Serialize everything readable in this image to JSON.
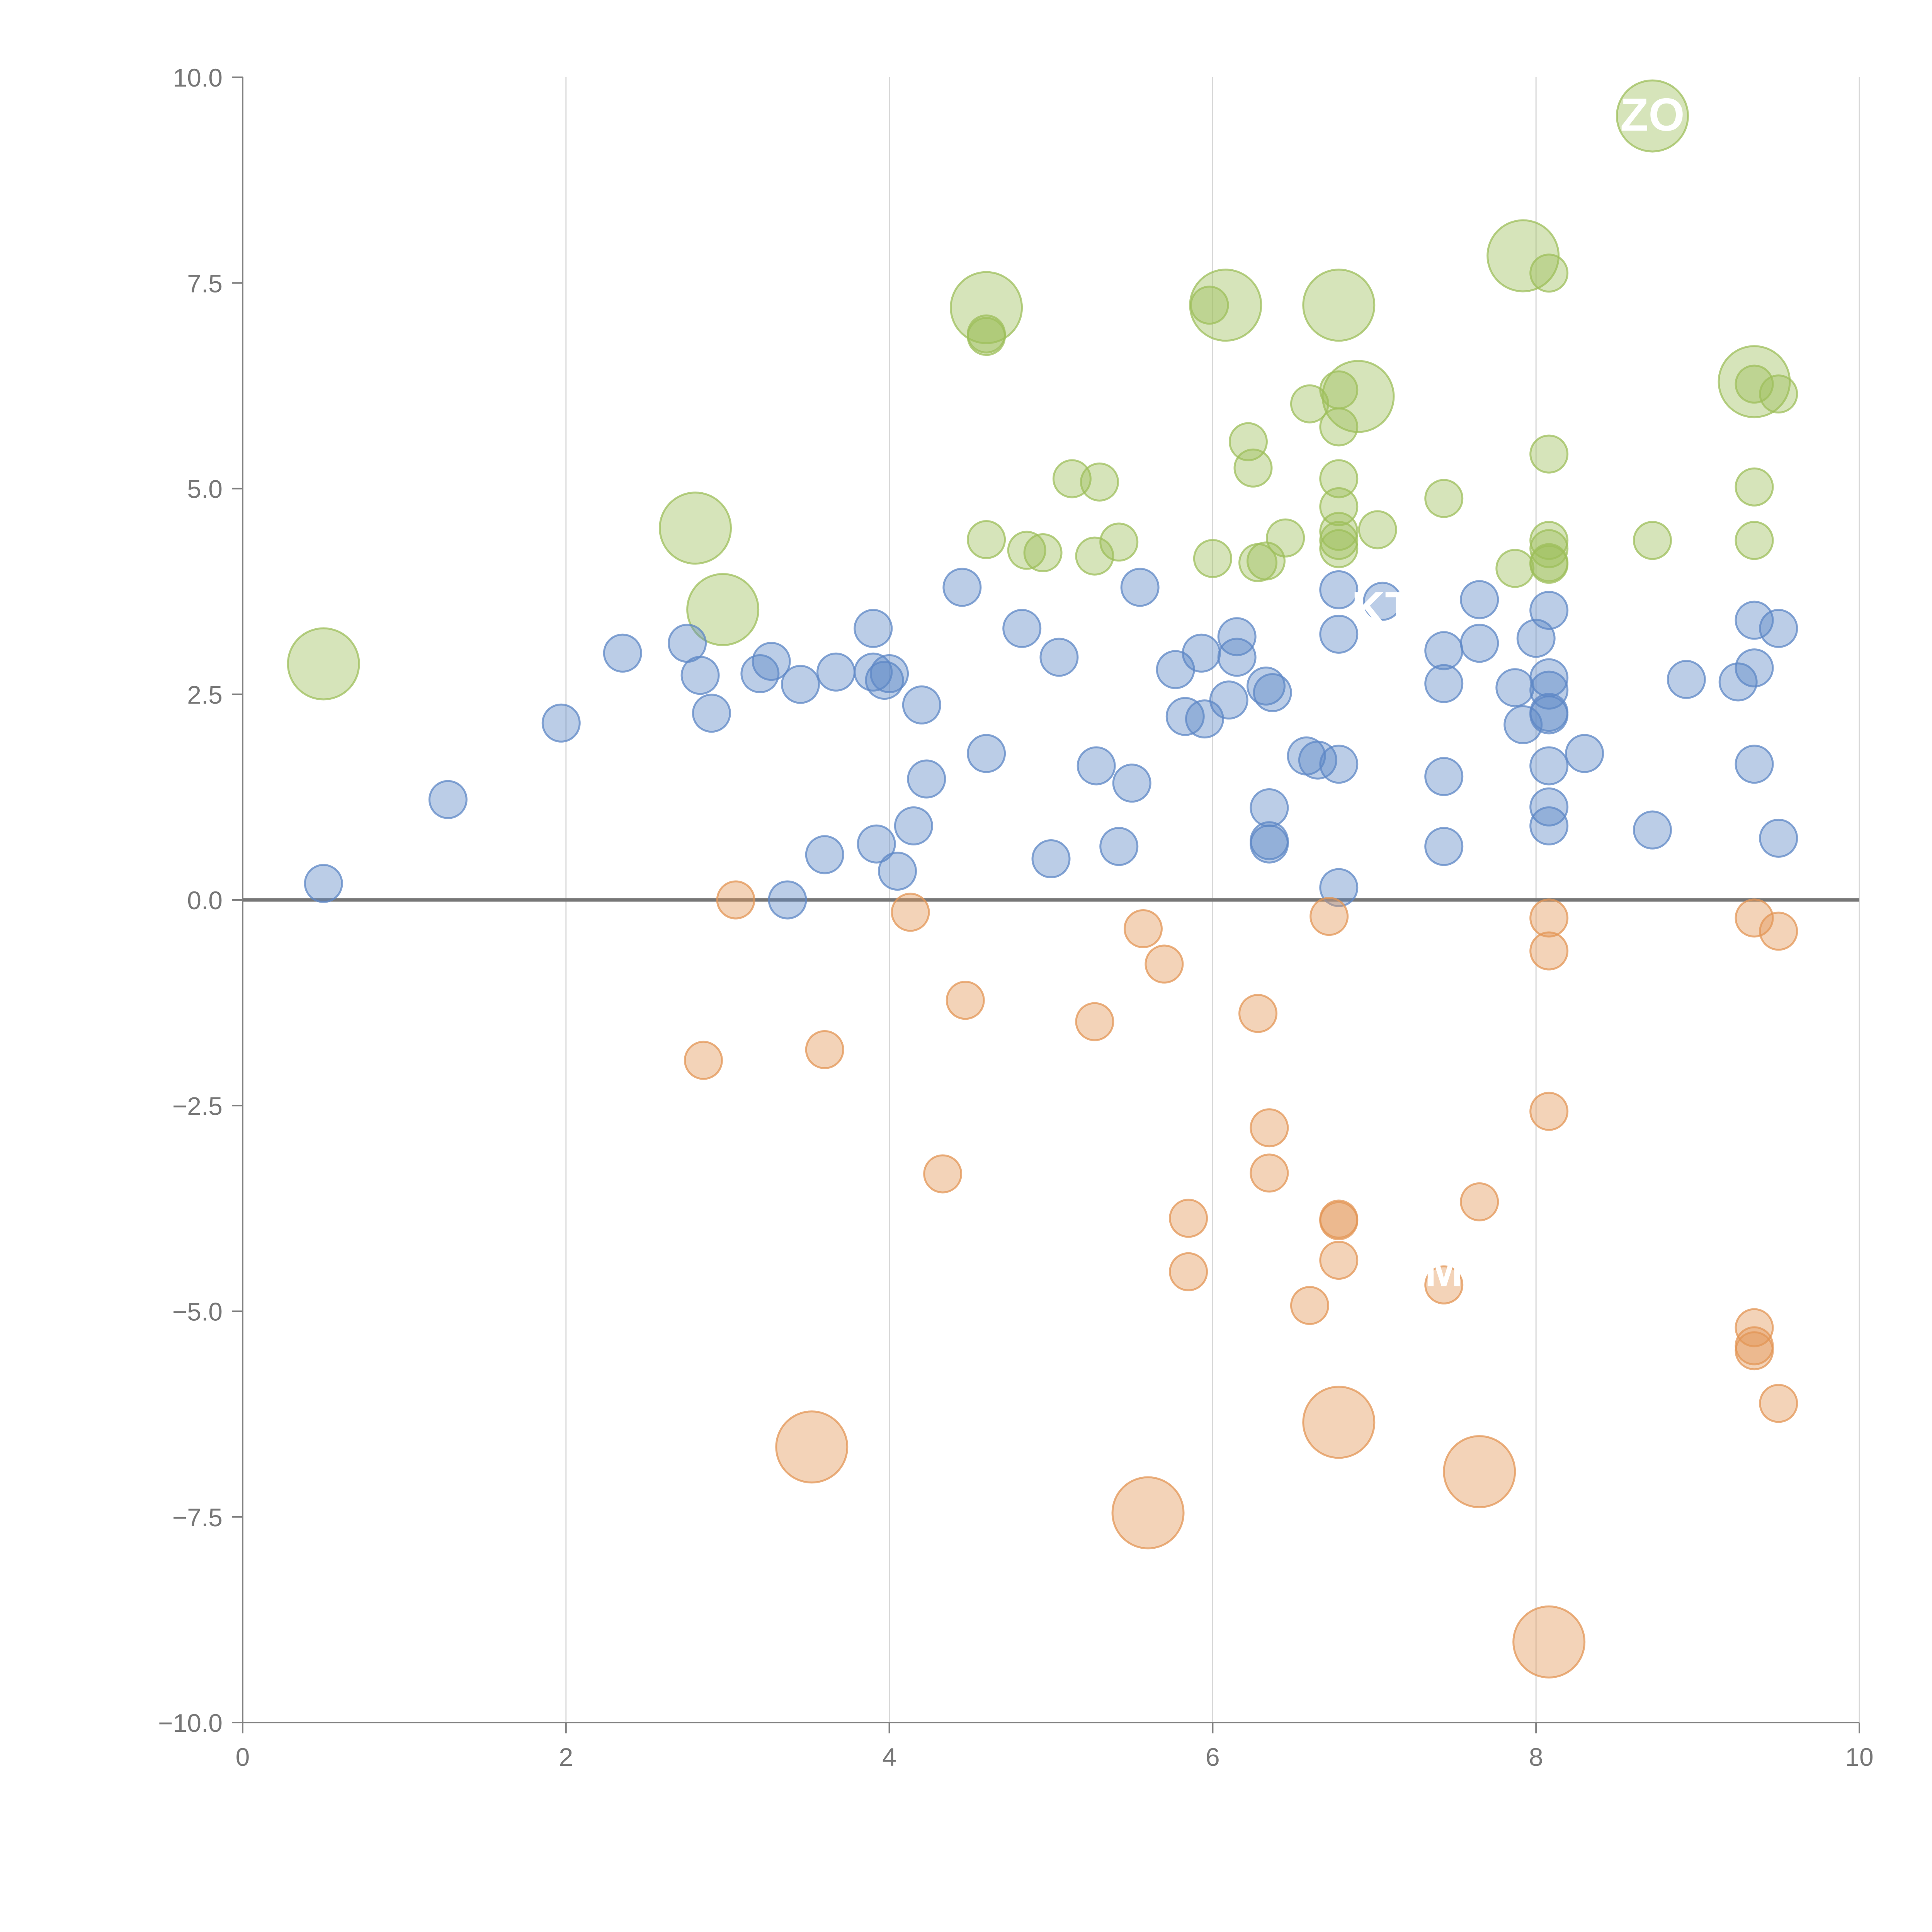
{
  "chart_data": {
    "type": "scatter",
    "title": "",
    "xlabel": "",
    "ylabel": "",
    "xlim": [
      0,
      10
    ],
    "ylim": [
      -10,
      10
    ],
    "grid": "vertical lines at x ticks",
    "x_ticks": [
      0,
      2,
      4,
      6,
      8,
      10
    ],
    "x_tick_labels": [
      "0",
      "2",
      "4",
      "6",
      "8",
      "10"
    ],
    "y_ticks": [
      10,
      7.5,
      5,
      2.5,
      0,
      -2.5,
      -5,
      -7.5,
      -10
    ],
    "y_tick_labels": [
      "10.0",
      "7.5",
      "5.0",
      "2.5",
      "0.0",
      "−2.5",
      "−5.0",
      "−7.5",
      "−10.0"
    ],
    "colors": {
      "green": "#9ebf5b",
      "blue": "#5e87c6",
      "orange": "#e39655",
      "axis": "#808080",
      "grid": "#d8d8d8",
      "zero_line": "#777777"
    },
    "series": [
      {
        "name": "green",
        "color": "#9ebf5b",
        "points": [
          [
            0.5,
            2.87,
            2
          ],
          [
            2.8,
            4.52,
            2
          ],
          [
            2.97,
            3.53,
            2
          ],
          [
            4.6,
            7.2,
            2
          ],
          [
            4.6,
            6.85,
            1
          ],
          [
            4.6,
            6.88,
            1
          ],
          [
            5.98,
            7.23,
            1
          ],
          [
            6.08,
            7.23,
            2
          ],
          [
            6.78,
            7.23,
            2
          ],
          [
            6.9,
            6.12,
            2
          ],
          [
            6.78,
            6.2,
            1
          ],
          [
            6.78,
            5.75,
            1
          ],
          [
            6.6,
            6.03,
            1
          ],
          [
            6.22,
            5.57,
            1
          ],
          [
            6.25,
            5.25,
            1
          ],
          [
            5.13,
            5.12,
            1
          ],
          [
            5.3,
            5.08,
            1
          ],
          [
            6.78,
            5.12,
            1
          ],
          [
            6.78,
            4.78,
            1
          ],
          [
            6.78,
            4.48,
            1
          ],
          [
            6.78,
            4.37,
            1
          ],
          [
            6.78,
            4.27,
            1
          ],
          [
            7.02,
            4.5,
            1
          ],
          [
            7.43,
            4.88,
            1
          ],
          [
            7.92,
            7.83,
            2
          ],
          [
            8.08,
            7.62,
            1
          ],
          [
            8.72,
            9.53,
            2
          ],
          [
            9.35,
            6.3,
            2
          ],
          [
            9.35,
            6.27,
            1
          ],
          [
            9.5,
            6.15,
            1
          ],
          [
            8.08,
            5.42,
            1
          ],
          [
            9.35,
            5.02,
            1
          ],
          [
            9.35,
            4.37,
            1
          ],
          [
            8.72,
            4.37,
            1
          ],
          [
            8.08,
            4.37,
            1
          ],
          [
            8.08,
            4.27,
            1
          ],
          [
            8.08,
            4.08,
            1
          ],
          [
            8.08,
            4.1,
            1
          ],
          [
            7.87,
            4.03,
            1
          ],
          [
            6.45,
            4.4,
            1
          ],
          [
            6.33,
            4.12,
            1
          ],
          [
            6.28,
            4.1,
            1
          ],
          [
            6.0,
            4.15,
            1
          ],
          [
            5.42,
            4.35,
            1
          ],
          [
            5.27,
            4.18,
            1
          ],
          [
            4.85,
            4.25,
            1
          ],
          [
            4.95,
            4.22,
            1
          ],
          [
            4.6,
            4.38,
            1
          ]
        ]
      },
      {
        "name": "blue",
        "color": "#5e87c6",
        "points": [
          [
            0.5,
            0.2,
            1
          ],
          [
            1.27,
            1.22,
            1
          ],
          [
            1.97,
            2.15,
            1
          ],
          [
            2.35,
            3.0,
            1
          ],
          [
            2.75,
            3.12,
            1
          ],
          [
            2.83,
            2.73,
            1
          ],
          [
            2.9,
            2.27,
            1
          ],
          [
            3.2,
            2.75,
            1
          ],
          [
            3.27,
            2.9,
            1
          ],
          [
            3.45,
            2.62,
            1
          ],
          [
            3.67,
            2.77,
            1
          ],
          [
            3.37,
            0.0,
            1
          ],
          [
            3.6,
            0.55,
            1
          ],
          [
            3.9,
            3.3,
            1
          ],
          [
            3.9,
            2.77,
            1
          ],
          [
            3.97,
            2.67,
            1
          ],
          [
            4.0,
            2.75,
            1
          ],
          [
            3.92,
            0.68,
            1
          ],
          [
            4.05,
            0.35,
            1
          ],
          [
            4.15,
            0.9,
            1
          ],
          [
            4.2,
            2.37,
            1
          ],
          [
            4.23,
            1.47,
            1
          ],
          [
            4.45,
            3.8,
            1
          ],
          [
            4.6,
            1.78,
            1
          ],
          [
            4.82,
            3.3,
            1
          ],
          [
            5.05,
            2.95,
            1
          ],
          [
            5.0,
            0.5,
            1
          ],
          [
            5.28,
            1.63,
            1
          ],
          [
            5.42,
            0.65,
            1
          ],
          [
            5.5,
            1.42,
            1
          ],
          [
            5.55,
            3.8,
            1
          ],
          [
            5.77,
            2.8,
            1
          ],
          [
            5.83,
            2.23,
            1
          ],
          [
            5.95,
            2.2,
            1
          ],
          [
            5.93,
            3.0,
            1
          ],
          [
            6.1,
            2.43,
            1
          ],
          [
            6.15,
            3.2,
            1
          ],
          [
            6.15,
            2.95,
            1
          ],
          [
            6.33,
            2.6,
            1
          ],
          [
            6.37,
            2.52,
            1
          ],
          [
            6.35,
            1.12,
            1
          ],
          [
            6.35,
            0.72,
            1
          ],
          [
            6.35,
            0.68,
            1
          ],
          [
            6.58,
            1.75,
            1
          ],
          [
            6.65,
            1.7,
            1
          ],
          [
            6.78,
            1.65,
            1
          ],
          [
            6.78,
            0.15,
            1
          ],
          [
            6.78,
            3.77,
            1
          ],
          [
            6.78,
            3.23,
            1
          ],
          [
            7.05,
            3.63,
            1
          ],
          [
            7.43,
            3.03,
            1
          ],
          [
            7.43,
            2.63,
            1
          ],
          [
            7.43,
            1.5,
            1
          ],
          [
            7.43,
            0.65,
            1
          ],
          [
            7.65,
            3.65,
            1
          ],
          [
            7.65,
            3.12,
            1
          ],
          [
            7.87,
            2.58,
            1
          ],
          [
            7.92,
            2.13,
            1
          ],
          [
            8.0,
            3.18,
            1
          ],
          [
            8.08,
            3.52,
            1
          ],
          [
            8.08,
            2.7,
            1
          ],
          [
            8.08,
            2.55,
            1
          ],
          [
            8.08,
            2.28,
            1
          ],
          [
            8.08,
            2.25,
            1
          ],
          [
            8.08,
            1.63,
            1
          ],
          [
            8.08,
            1.13,
            1
          ],
          [
            8.08,
            0.9,
            1
          ],
          [
            8.3,
            1.78,
            1
          ],
          [
            8.72,
            0.85,
            1
          ],
          [
            8.93,
            2.68,
            1
          ],
          [
            9.25,
            2.65,
            1
          ],
          [
            9.35,
            3.4,
            1
          ],
          [
            9.35,
            2.82,
            1
          ],
          [
            9.35,
            1.65,
            1
          ],
          [
            9.5,
            3.3,
            1
          ],
          [
            9.5,
            0.75,
            1
          ]
        ]
      },
      {
        "name": "orange",
        "color": "#e39655",
        "points": [
          [
            3.05,
            0.0,
            1
          ],
          [
            2.85,
            -1.95,
            1
          ],
          [
            3.6,
            -1.82,
            1
          ],
          [
            4.13,
            -0.15,
            1
          ],
          [
            4.47,
            -1.22,
            1
          ],
          [
            4.33,
            -3.33,
            1
          ],
          [
            5.27,
            -1.48,
            1
          ],
          [
            5.57,
            -0.35,
            1
          ],
          [
            5.7,
            -0.78,
            1
          ],
          [
            5.85,
            -3.87,
            1
          ],
          [
            5.85,
            -4.52,
            1
          ],
          [
            6.28,
            -1.38,
            1
          ],
          [
            6.35,
            -2.77,
            1
          ],
          [
            6.35,
            -3.32,
            1
          ],
          [
            6.6,
            -4.93,
            1
          ],
          [
            6.72,
            -0.2,
            1
          ],
          [
            6.78,
            -3.88,
            1
          ],
          [
            6.78,
            -3.9,
            1
          ],
          [
            6.78,
            -4.38,
            1
          ],
          [
            7.43,
            -4.68,
            1
          ],
          [
            7.65,
            -3.67,
            1
          ],
          [
            8.08,
            -0.22,
            1
          ],
          [
            8.08,
            -0.62,
            1
          ],
          [
            8.08,
            -2.57,
            1
          ],
          [
            9.35,
            -0.22,
            1
          ],
          [
            9.5,
            -0.38,
            1
          ],
          [
            9.35,
            -5.2,
            1
          ],
          [
            9.35,
            -5.42,
            1
          ],
          [
            9.35,
            -5.48,
            1
          ],
          [
            9.5,
            -6.12,
            1
          ],
          [
            3.52,
            -6.65,
            2
          ],
          [
            5.6,
            -7.45,
            2
          ],
          [
            6.78,
            -6.35,
            2
          ],
          [
            7.65,
            -6.95,
            2
          ],
          [
            8.08,
            -9.02,
            2
          ]
        ]
      }
    ],
    "point_format": "[x, y, size] where size 1 = small marker, 2 = large marker",
    "annotations": [
      {
        "text": "ZO",
        "x": 8.72,
        "y": 9.55
      },
      {
        "text": "KT",
        "x": 7.05,
        "y": 3.55
      },
      {
        "text": "M",
        "x": 7.43,
        "y": -4.5
      }
    ]
  }
}
